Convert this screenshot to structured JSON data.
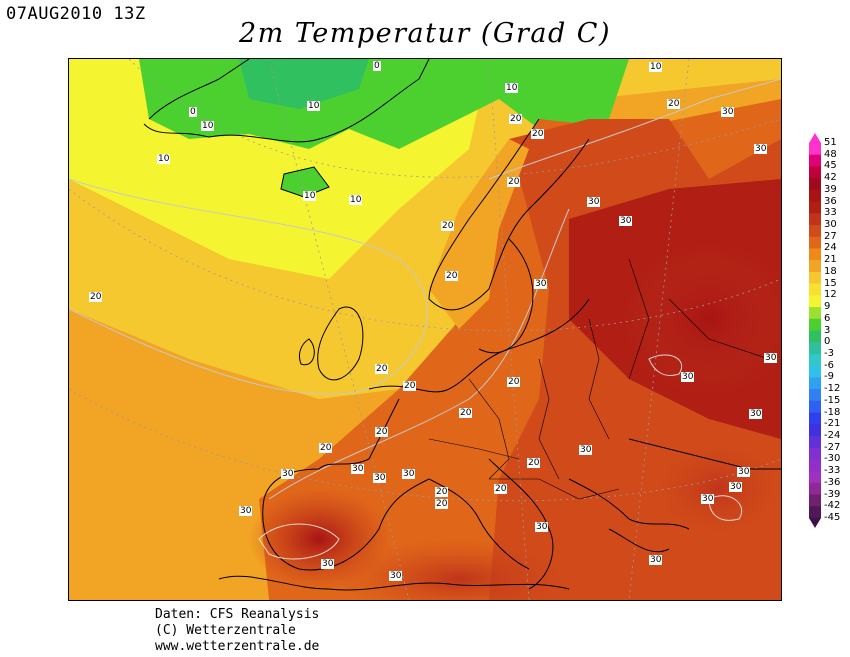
{
  "header": {
    "date": "07AUG2010 13Z",
    "title": "2m Temperatur (Grad C)"
  },
  "map": {
    "isotherm_labels": [
      "0",
      "10",
      "10",
      "10",
      "0",
      "10",
      "10",
      "10",
      "10",
      "20",
      "20",
      "20",
      "20",
      "20",
      "20",
      "20",
      "20",
      "20",
      "20",
      "20",
      "20",
      "20",
      "20",
      "20",
      "20",
      "20",
      "30",
      "30",
      "30",
      "30",
      "30",
      "30",
      "30",
      "30",
      "30",
      "30",
      "30",
      "30",
      "30",
      "30",
      "30",
      "30",
      "30",
      "30",
      "30",
      "30",
      "30"
    ]
  },
  "legend": {
    "values": [
      "51",
      "48",
      "45",
      "42",
      "39",
      "36",
      "33",
      "30",
      "27",
      "24",
      "21",
      "18",
      "15",
      "12",
      "9",
      "6",
      "3",
      "0",
      "-3",
      "-6",
      "-9",
      "-12",
      "-15",
      "-18",
      "-21",
      "-24",
      "-27",
      "-30",
      "-33",
      "-36",
      "-39",
      "-42",
      "-45"
    ],
    "colors": [
      "#ff33cc",
      "#e0007a",
      "#c0003a",
      "#a00a1e",
      "#a81414",
      "#b01e14",
      "#c0341a",
      "#d04a1a",
      "#e0661a",
      "#ee8a1a",
      "#f2a424",
      "#f6c830",
      "#f8e030",
      "#f4f430",
      "#9ee030",
      "#4cd030",
      "#30c060",
      "#30c0a0",
      "#30c8c8",
      "#30c0e8",
      "#30a0f0",
      "#3080f0",
      "#3060f0",
      "#3040f0",
      "#4030e0",
      "#6030d8",
      "#8030d0",
      "#9030c8",
      "#a030c0",
      "#902898",
      "#702070",
      "#501858",
      "#401048"
    ]
  },
  "footer": {
    "source": "Daten: CFS Reanalysis",
    "copyright": "(C) Wetterzentrale",
    "url": "www.wetterzentrale.de"
  }
}
